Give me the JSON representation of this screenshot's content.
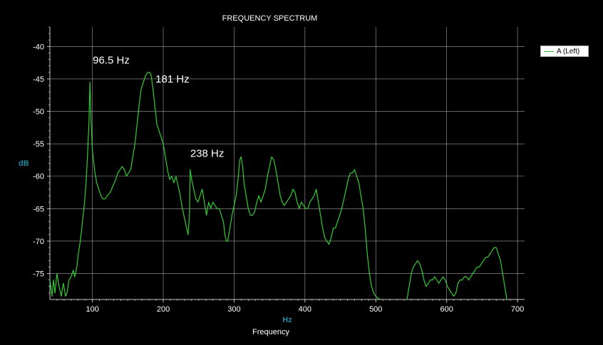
{
  "chart_data": {
    "type": "line",
    "title": "FREQUENCY SPECTRUM",
    "xlabel": "Hz",
    "footer_label": "Frequency",
    "ylabel": "dB",
    "xlim": [
      40,
      710
    ],
    "ylim": [
      -79,
      -37
    ],
    "xticks": [
      100,
      200,
      300,
      400,
      500,
      600,
      700
    ],
    "yticks": [
      -40,
      -45,
      -50,
      -55,
      -60,
      -65,
      -70,
      -75
    ],
    "grid": true,
    "legend_position": "top-right",
    "colors": {
      "series": "#33cc33",
      "grid": "#c8c8c8",
      "axis": "#c8c8c8",
      "background": "#000000"
    },
    "series": [
      {
        "name": "A (Left)",
        "segments": [
          [
            [
              40,
              -76
            ],
            [
              43,
              -78.5
            ],
            [
              45,
              -76
            ],
            [
              47,
              -78
            ],
            [
              50,
              -75
            ],
            [
              53,
              -77
            ],
            [
              56,
              -78.5
            ],
            [
              59,
              -76.5
            ],
            [
              62,
              -78.5
            ],
            [
              64,
              -78
            ],
            [
              67,
              -76
            ],
            [
              70,
              -75.5
            ],
            [
              73,
              -74.5
            ],
            [
              75,
              -75.5
            ],
            [
              78,
              -74
            ],
            [
              80,
              -72
            ],
            [
              83,
              -70
            ],
            [
              86,
              -67
            ],
            [
              89,
              -64
            ],
            [
              91,
              -61
            ],
            [
              93,
              -57
            ],
            [
              95,
              -52
            ],
            [
              96.5,
              -45.5
            ],
            [
              98,
              -51
            ],
            [
              100,
              -56
            ],
            [
              103,
              -59
            ],
            [
              106,
              -61
            ],
            [
              109,
              -62
            ],
            [
              112,
              -63
            ],
            [
              115,
              -63.5
            ],
            [
              118,
              -63.5
            ],
            [
              121,
              -63
            ],
            [
              125,
              -62.5
            ],
            [
              129,
              -61.5
            ],
            [
              133,
              -60.5
            ],
            [
              136,
              -59.5
            ],
            [
              139,
              -59
            ],
            [
              142,
              -58.5
            ],
            [
              145,
              -59
            ],
            [
              148,
              -60
            ],
            [
              151,
              -59.5
            ],
            [
              154,
              -59
            ],
            [
              157,
              -57
            ],
            [
              160,
              -55
            ],
            [
              163,
              -52
            ],
            [
              166,
              -49
            ],
            [
              169,
              -46.5
            ],
            [
              172,
              -45.5
            ],
            [
              175,
              -44.5
            ],
            [
              178,
              -44
            ],
            [
              181,
              -44
            ],
            [
              183,
              -44.5
            ],
            [
              185,
              -46
            ],
            [
              188,
              -49
            ],
            [
              191,
              -52
            ],
            [
              194,
              -53
            ],
            [
              197,
              -54
            ],
            [
              200,
              -55
            ],
            [
              203,
              -57
            ],
            [
              206,
              -59
            ],
            [
              209,
              -60.5
            ],
            [
              212,
              -60
            ],
            [
              215,
              -61
            ],
            [
              218,
              -60
            ],
            [
              221,
              -61.5
            ],
            [
              224,
              -63
            ],
            [
              227,
              -65
            ],
            [
              230,
              -66.5
            ],
            [
              233,
              -68
            ],
            [
              235,
              -69
            ],
            [
              237,
              -66
            ],
            [
              238,
              -59
            ],
            [
              240,
              -60.5
            ],
            [
              243,
              -62
            ],
            [
              246,
              -63.5
            ],
            [
              249,
              -64
            ],
            [
              252,
              -63
            ],
            [
              255,
              -62
            ],
            [
              258,
              -64
            ],
            [
              261,
              -66
            ],
            [
              264,
              -64
            ],
            [
              267,
              -65
            ],
            [
              270,
              -64
            ],
            [
              273,
              -64.5
            ],
            [
              276,
              -65
            ],
            [
              279,
              -65
            ],
            [
              282,
              -66
            ],
            [
              285,
              -67
            ],
            [
              287,
              -69
            ],
            [
              289,
              -70
            ],
            [
              291,
              -70
            ],
            [
              294,
              -68
            ],
            [
              297,
              -66
            ],
            [
              300,
              -64.5
            ],
            [
              303,
              -63
            ],
            [
              306,
              -60
            ],
            [
              308,
              -57.5
            ],
            [
              310,
              -57
            ],
            [
              312,
              -58.5
            ],
            [
              314,
              -61
            ],
            [
              317,
              -63
            ],
            [
              320,
              -65
            ],
            [
              323,
              -66
            ],
            [
              326,
              -66
            ],
            [
              329,
              -65.5
            ],
            [
              332,
              -64
            ],
            [
              335,
              -63
            ],
            [
              338,
              -64
            ],
            [
              341,
              -63
            ],
            [
              344,
              -62
            ],
            [
              347,
              -60
            ],
            [
              350,
              -58.5
            ],
            [
              353,
              -57
            ],
            [
              356,
              -57.5
            ],
            [
              359,
              -59
            ],
            [
              362,
              -61
            ],
            [
              365,
              -63
            ],
            [
              368,
              -64
            ],
            [
              371,
              -64.5
            ],
            [
              374,
              -64
            ],
            [
              377,
              -63.5
            ],
            [
              380,
              -63
            ],
            [
              383,
              -62
            ],
            [
              386,
              -62.5
            ],
            [
              389,
              -64
            ],
            [
              392,
              -65
            ],
            [
              395,
              -64
            ],
            [
              398,
              -64.5
            ],
            [
              401,
              -65
            ],
            [
              404,
              -65
            ],
            [
              407,
              -64
            ],
            [
              410,
              -63.5
            ],
            [
              413,
              -63
            ],
            [
              416,
              -62
            ],
            [
              419,
              -64
            ],
            [
              422,
              -66
            ],
            [
              425,
              -68
            ],
            [
              428,
              -69.5
            ],
            [
              431,
              -70
            ],
            [
              434,
              -70.5
            ],
            [
              437,
              -69.5
            ],
            [
              440,
              -68
            ],
            [
              443,
              -68
            ],
            [
              446,
              -67
            ],
            [
              449,
              -66
            ],
            [
              452,
              -65
            ],
            [
              455,
              -63.5
            ],
            [
              458,
              -62
            ],
            [
              461,
              -60.5
            ],
            [
              464,
              -59.5
            ],
            [
              467,
              -59.5
            ],
            [
              470,
              -59
            ],
            [
              473,
              -60
            ],
            [
              476,
              -61
            ],
            [
              479,
              -63
            ],
            [
              482,
              -65
            ],
            [
              485,
              -68
            ],
            [
              488,
              -72
            ],
            [
              491,
              -75
            ],
            [
              494,
              -77
            ],
            [
              497,
              -78
            ],
            [
              500,
              -78.5
            ],
            [
              503,
              -78.8
            ],
            [
              506,
              -79
            ]
          ],
          [
            [
              544,
              -79
            ],
            [
              547,
              -77
            ],
            [
              550,
              -75
            ],
            [
              553,
              -74
            ],
            [
              556,
              -73.5
            ],
            [
              559,
              -73
            ],
            [
              562,
              -73.5
            ],
            [
              565,
              -74.5
            ],
            [
              568,
              -76
            ],
            [
              571,
              -77
            ],
            [
              574,
              -76.5
            ],
            [
              577,
              -76
            ],
            [
              580,
              -76
            ],
            [
              583,
              -75.5
            ],
            [
              586,
              -76
            ],
            [
              589,
              -76.5
            ],
            [
              592,
              -76
            ],
            [
              595,
              -75.5
            ],
            [
              598,
              -76
            ],
            [
              601,
              -77
            ],
            [
              604,
              -77.5
            ],
            [
              607,
              -78
            ],
            [
              610,
              -78.5
            ],
            [
              613,
              -78
            ],
            [
              616,
              -76.5
            ],
            [
              619,
              -76
            ],
            [
              622,
              -76
            ],
            [
              625,
              -75.5
            ],
            [
              628,
              -75.5
            ],
            [
              631,
              -76
            ],
            [
              634,
              -75.5
            ],
            [
              637,
              -75
            ],
            [
              640,
              -74.5
            ],
            [
              643,
              -74
            ],
            [
              646,
              -74
            ],
            [
              649,
              -73.5
            ],
            [
              652,
              -73
            ],
            [
              655,
              -72.5
            ],
            [
              658,
              -72.5
            ],
            [
              661,
              -72
            ],
            [
              664,
              -71.5
            ],
            [
              667,
              -71
            ],
            [
              670,
              -71
            ],
            [
              673,
              -72
            ],
            [
              676,
              -73
            ],
            [
              679,
              -75
            ],
            [
              682,
              -77
            ],
            [
              685,
              -79
            ]
          ]
        ]
      }
    ],
    "annotations": [
      {
        "text": "96.5 Hz",
        "x": 96.5,
        "y": -45.5
      },
      {
        "text": "181 Hz",
        "x": 181,
        "y": -44
      },
      {
        "text": "238 Hz",
        "x": 238,
        "y": -59
      }
    ]
  }
}
